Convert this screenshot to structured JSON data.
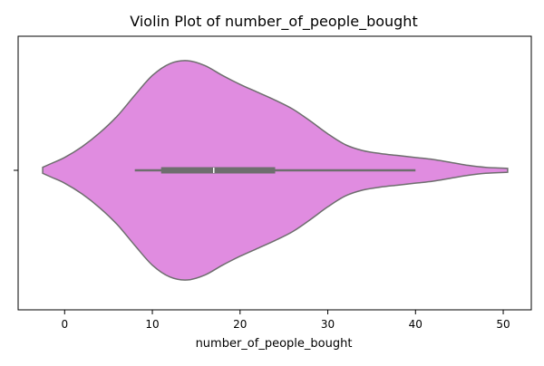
{
  "chart_data": {
    "type": "violin",
    "title": "Violin Plot of number_of_people_bought",
    "xlabel": "number_of_people_bought",
    "ylabel": "",
    "xlim": [
      -5.3,
      53.2
    ],
    "xticks": [
      0,
      10,
      20,
      30,
      40,
      50
    ],
    "xtick_labels": [
      "0",
      "10",
      "20",
      "30",
      "40",
      "50"
    ],
    "yticks": [
      ""
    ],
    "grid": false,
    "fill_color": "#e08ce0",
    "line_color": "#6e6e6e",
    "box_color": "#6e6e6e",
    "median_color": "#ffffff",
    "orientation": "horizontal",
    "density_profile": [
      {
        "x": -2.5,
        "w": 0.027
      },
      {
        "x": -1.5,
        "w": 0.063
      },
      {
        "x": 0.0,
        "w": 0.117
      },
      {
        "x": 2.0,
        "w": 0.216
      },
      {
        "x": 4.0,
        "w": 0.342
      },
      {
        "x": 6.0,
        "w": 0.495
      },
      {
        "x": 8.0,
        "w": 0.685
      },
      {
        "x": 10.0,
        "w": 0.865
      },
      {
        "x": 12.0,
        "w": 0.973
      },
      {
        "x": 14.0,
        "w": 1.0
      },
      {
        "x": 16.0,
        "w": 0.955
      },
      {
        "x": 18.0,
        "w": 0.865
      },
      {
        "x": 20.0,
        "w": 0.784
      },
      {
        "x": 22.0,
        "w": 0.712
      },
      {
        "x": 24.0,
        "w": 0.64
      },
      {
        "x": 26.0,
        "w": 0.559
      },
      {
        "x": 28.0,
        "w": 0.45
      },
      {
        "x": 30.0,
        "w": 0.333
      },
      {
        "x": 32.0,
        "w": 0.234
      },
      {
        "x": 34.0,
        "w": 0.18
      },
      {
        "x": 36.0,
        "w": 0.153
      },
      {
        "x": 38.0,
        "w": 0.135
      },
      {
        "x": 40.0,
        "w": 0.117
      },
      {
        "x": 42.0,
        "w": 0.099
      },
      {
        "x": 44.0,
        "w": 0.072
      },
      {
        "x": 46.0,
        "w": 0.045
      },
      {
        "x": 48.0,
        "w": 0.027
      },
      {
        "x": 50.5,
        "w": 0.018
      }
    ],
    "box_stats": {
      "whisker_low": 8,
      "q1": 11,
      "median": 17,
      "q3": 24,
      "whisker_high": 40
    }
  }
}
